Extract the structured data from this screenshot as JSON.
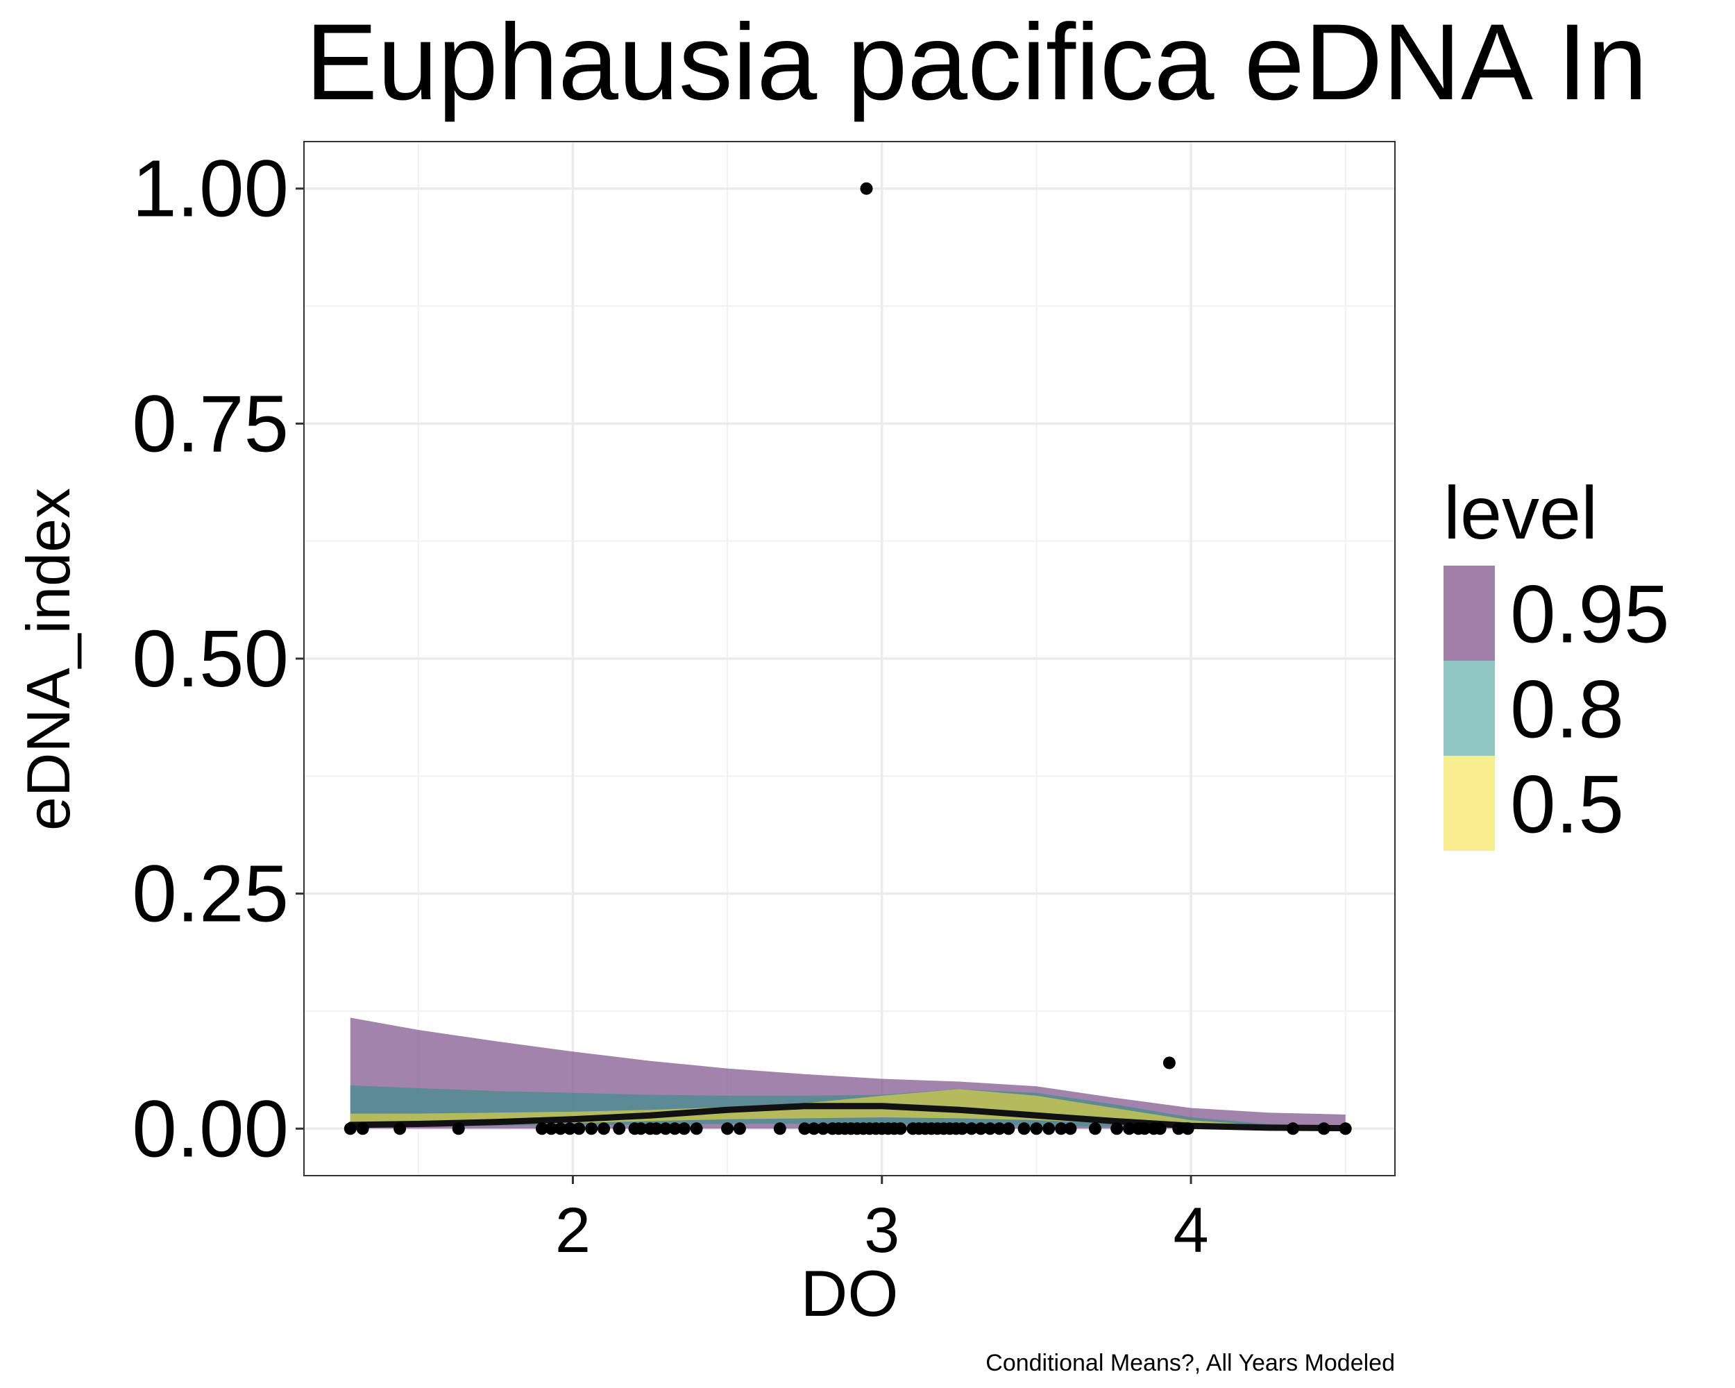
{
  "chart_data": {
    "type": "area",
    "title": "Euphausia pacifica eDNA In",
    "caption": "Conditional Means?, All Years Modeled",
    "xlabel": "DO",
    "ylabel": "eDNA_index",
    "xlim": [
      1.13,
      4.66
    ],
    "ylim": [
      -0.05,
      1.05
    ],
    "x_ticks": [
      2,
      3,
      4
    ],
    "x_tick_labels": [
      "2",
      "3",
      "4"
    ],
    "y_ticks": [
      0,
      0.25,
      0.5,
      0.75,
      1.0
    ],
    "y_tick_labels": [
      "0.00",
      "0.25",
      "0.50",
      "0.75",
      "1.00"
    ],
    "grid": true,
    "legend": {
      "title": "level",
      "position": "right",
      "entries": [
        {
          "label": "0.95",
          "color": "#a07fa8"
        },
        {
          "label": "0.8",
          "color": "#8fc6c1"
        },
        {
          "label": "0.5",
          "color": "#f9ee8d"
        }
      ]
    },
    "ribbon_x": [
      1.28,
      1.5,
      1.75,
      2.0,
      2.25,
      2.5,
      2.75,
      3.0,
      3.25,
      3.5,
      3.75,
      4.0,
      4.25,
      4.5
    ],
    "series": [
      {
        "name": "0.95",
        "color": "#7a4f88",
        "lower": [
          0,
          0,
          0,
          0,
          0,
          0,
          0,
          0,
          0,
          0,
          0,
          0,
          0,
          0
        ],
        "upper": [
          0.118,
          0.105,
          0.093,
          0.082,
          0.072,
          0.064,
          0.058,
          0.053,
          0.05,
          0.045,
          0.033,
          0.022,
          0.017,
          0.015
        ]
      },
      {
        "name": "0.8",
        "color": "#3f8f8b",
        "lower": [
          0.001,
          0.002,
          0.003,
          0.004,
          0.004,
          0.005,
          0.005,
          0.005,
          0.004,
          0.003,
          0.002,
          0.001,
          0.0,
          0.0
        ],
        "upper": [
          0.046,
          0.043,
          0.04,
          0.038,
          0.036,
          0.035,
          0.035,
          0.036,
          0.042,
          0.038,
          0.026,
          0.012,
          0.005,
          0.003
        ]
      },
      {
        "name": "0.5",
        "color": "#d8d046",
        "lower": [
          0.002,
          0.003,
          0.004,
          0.006,
          0.008,
          0.01,
          0.011,
          0.012,
          0.011,
          0.009,
          0.006,
          0.003,
          0.001,
          0.0
        ],
        "upper": [
          0.016,
          0.016,
          0.017,
          0.018,
          0.02,
          0.023,
          0.027,
          0.035,
          0.042,
          0.035,
          0.022,
          0.009,
          0.003,
          0.001
        ]
      }
    ],
    "mean_line": {
      "x": [
        1.28,
        1.5,
        1.75,
        2.0,
        2.25,
        2.5,
        2.75,
        3.0,
        3.25,
        3.5,
        3.75,
        3.9,
        4.0,
        4.25,
        4.5
      ],
      "y": [
        0.004,
        0.005,
        0.007,
        0.01,
        0.014,
        0.02,
        0.024,
        0.024,
        0.02,
        0.014,
        0.008,
        0.005,
        0.003,
        0.001,
        0.0005
      ]
    },
    "points": {
      "x": [
        1.28,
        1.32,
        1.44,
        1.63,
        1.9,
        1.93,
        1.96,
        1.99,
        2.02,
        2.06,
        2.1,
        2.15,
        2.2,
        2.22,
        2.25,
        2.27,
        2.3,
        2.33,
        2.36,
        2.4,
        2.5,
        2.54,
        2.67,
        2.75,
        2.78,
        2.81,
        2.84,
        2.86,
        2.88,
        2.9,
        2.92,
        2.94,
        2.96,
        2.98,
        3.0,
        3.02,
        3.04,
        3.06,
        3.1,
        3.12,
        3.14,
        3.16,
        3.18,
        3.2,
        3.22,
        3.24,
        3.26,
        3.29,
        3.32,
        3.35,
        3.38,
        3.41,
        3.46,
        3.5,
        3.54,
        3.58,
        3.61,
        3.69,
        3.76,
        3.8,
        3.83,
        3.85,
        3.88,
        3.9,
        3.96,
        3.99,
        4.33,
        4.43,
        4.5,
        2.95,
        3.93
      ],
      "y": [
        0,
        0,
        0,
        0,
        0,
        0,
        0,
        0,
        0,
        0,
        0,
        0,
        0,
        0,
        0,
        0,
        0,
        0,
        0,
        0,
        0,
        0,
        0,
        0,
        0,
        0,
        0,
        0,
        0,
        0,
        0,
        0,
        0,
        0,
        0,
        0,
        0,
        0,
        0,
        0,
        0,
        0,
        0,
        0,
        0,
        0,
        0,
        0,
        0,
        0,
        0,
        0,
        0,
        0,
        0,
        0,
        0,
        0,
        0,
        0,
        0,
        0,
        0,
        0,
        0,
        0,
        0,
        0,
        0,
        1.0,
        0.07
      ]
    }
  }
}
